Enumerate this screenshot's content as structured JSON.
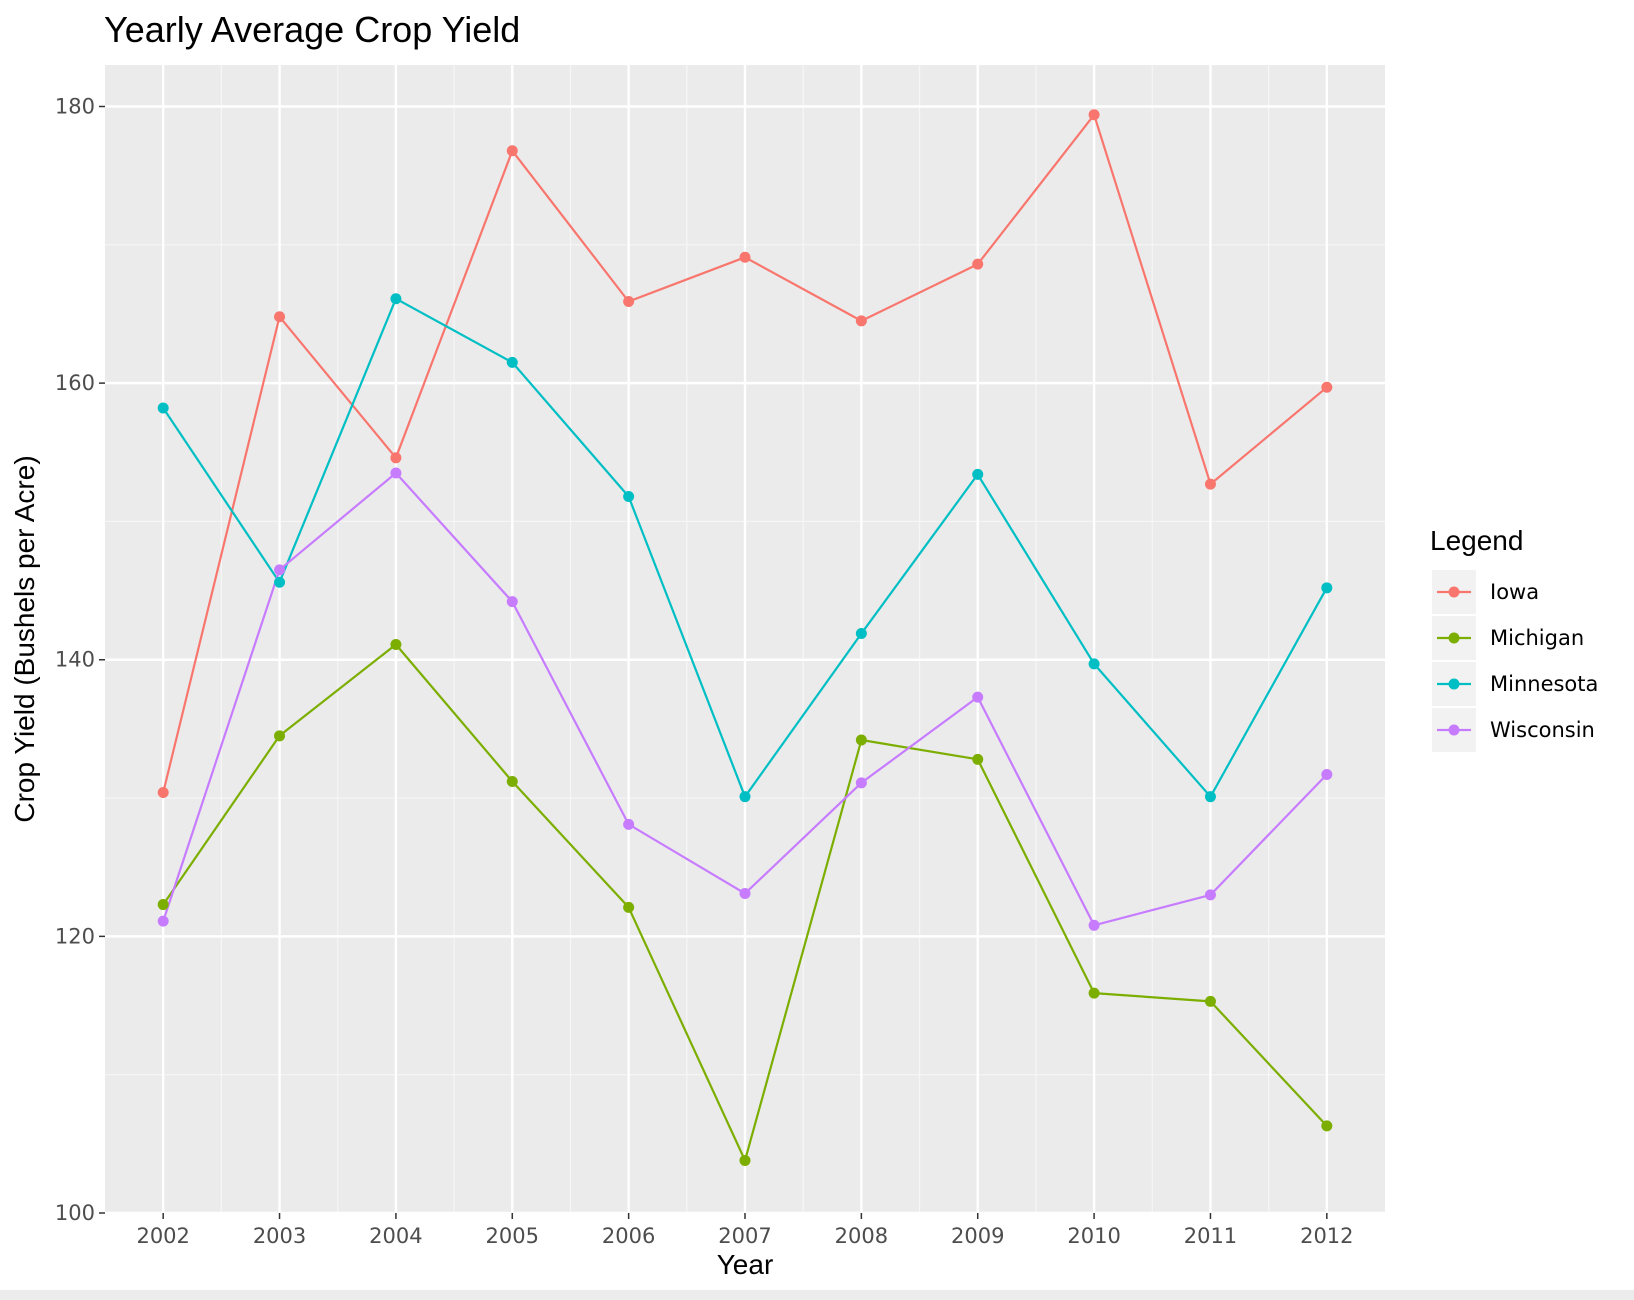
{
  "chart_data": {
    "type": "line",
    "title": "Yearly Average Crop Yield",
    "xlabel": "Year",
    "ylabel": "Crop Yield (Bushels per Acre)",
    "x": [
      2002,
      2003,
      2004,
      2005,
      2006,
      2007,
      2008,
      2009,
      2010,
      2011,
      2012
    ],
    "x_ticks": [
      "2002",
      "2003",
      "2004",
      "2005",
      "2006",
      "2007",
      "2008",
      "2009",
      "2010",
      "2011",
      "2012"
    ],
    "xlim": [
      2001.5,
      2012.5
    ],
    "ylim": [
      100,
      183
    ],
    "y_ticks": [
      100,
      120,
      140,
      160,
      180
    ],
    "y_minor_ticks": [
      110,
      130,
      150,
      170
    ],
    "grid": true,
    "legend": {
      "title": "Legend",
      "placement": "right"
    },
    "series": [
      {
        "name": "Iowa",
        "color": "#f8766d",
        "values": [
          130.4,
          164.8,
          154.6,
          176.8,
          165.9,
          169.1,
          164.5,
          168.6,
          179.4,
          152.7,
          159.7
        ]
      },
      {
        "name": "Michigan",
        "color": "#7cae00",
        "values": [
          122.3,
          134.5,
          141.1,
          131.2,
          122.1,
          103.8,
          134.2,
          132.8,
          115.9,
          115.3,
          106.3
        ]
      },
      {
        "name": "Minnesota",
        "color": "#00bfc4",
        "values": [
          158.2,
          145.6,
          166.1,
          161.5,
          151.8,
          130.1,
          141.9,
          153.4,
          139.7,
          130.1,
          145.2
        ]
      },
      {
        "name": "Wisconsin",
        "color": "#c77cff",
        "values": [
          121.1,
          146.5,
          153.5,
          144.2,
          128.1,
          123.1,
          131.1,
          137.3,
          120.8,
          123.0,
          131.7
        ]
      }
    ]
  }
}
